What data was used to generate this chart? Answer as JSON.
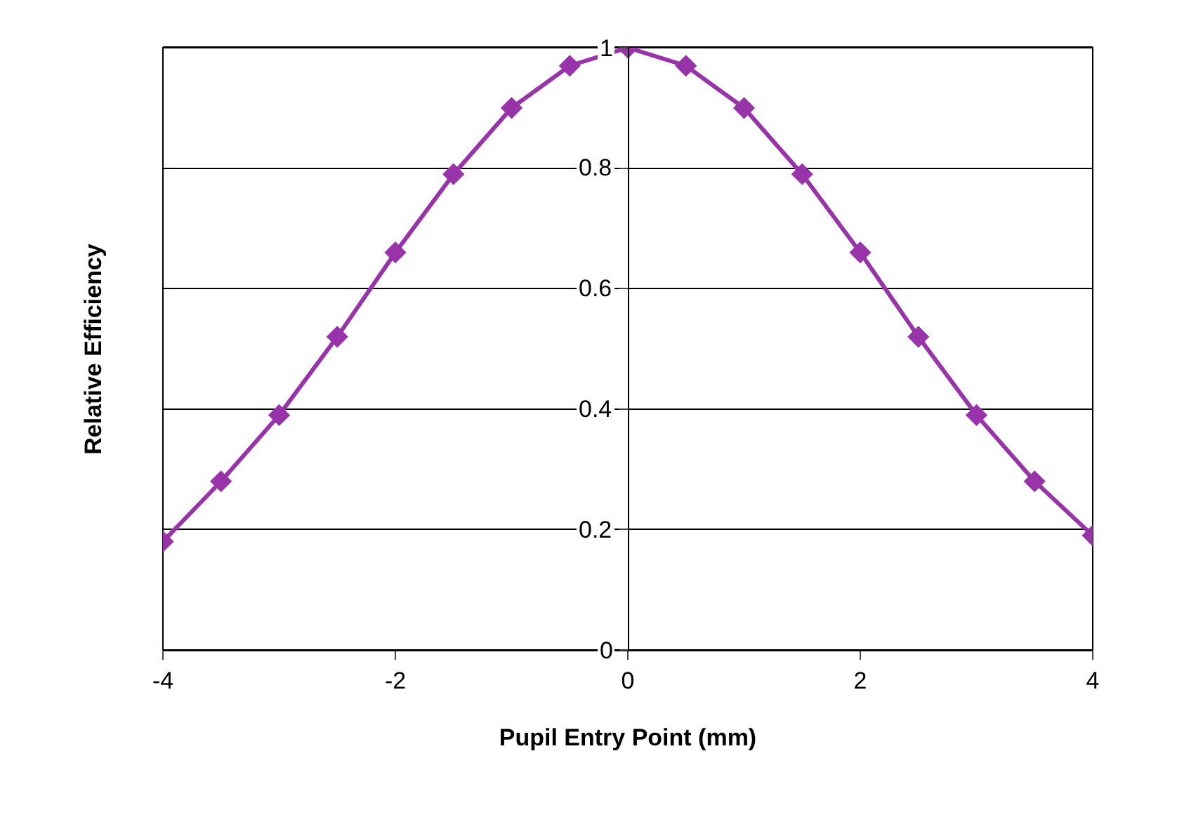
{
  "chart_data": {
    "type": "line",
    "xlabel": "Pupil Entry Point (mm)",
    "ylabel": "Relative Efficiency",
    "x": [
      -4,
      -3.5,
      -3,
      -2.5,
      -2,
      -1.5,
      -1,
      -0.5,
      0,
      0.5,
      1,
      1.5,
      2,
      2.5,
      3,
      3.5,
      4
    ],
    "series": [
      {
        "color": "#9933aa",
        "values": [
          0.18,
          0.28,
          0.39,
          0.52,
          0.66,
          0.79,
          0.9,
          0.97,
          1.0,
          0.97,
          0.9,
          0.79,
          0.66,
          0.52,
          0.39,
          0.28,
          0.19
        ]
      }
    ],
    "xlim": [
      -4,
      4
    ],
    "xticks": [
      -4,
      -2,
      0,
      2,
      4
    ],
    "ylim": [
      0,
      1
    ],
    "yticks": [
      0,
      0.2,
      0.4,
      0.6,
      0.8,
      1
    ],
    "grid": "y",
    "marker": "diamond",
    "line_style": "solid"
  }
}
